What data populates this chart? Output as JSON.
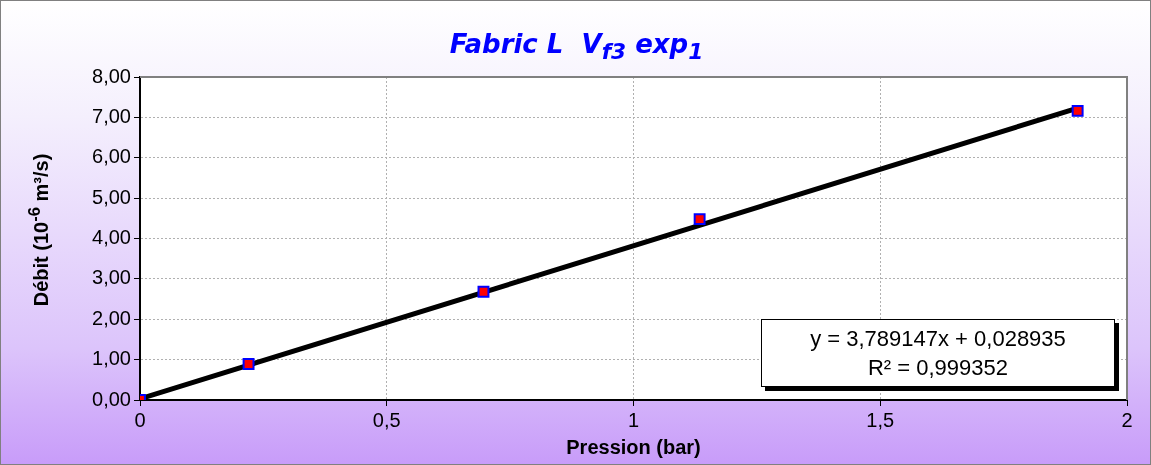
{
  "chart_data": {
    "type": "scatter",
    "title": "Fabric L  V$_{f3}$ exp$_{1}$",
    "xlabel": "Pression (bar)",
    "ylabel": "Débit (10$^{-6}$ m³/s)",
    "series": [
      {
        "color": "#ff0000",
        "marker": "square",
        "x": [
          0,
          0.22,
          0.696,
          1.134,
          1.9
        ],
        "values": [
          0,
          0.89,
          2.68,
          4.48,
          7.16
        ]
      },
      {
        "type": "line",
        "color": "#000000",
        "marker": "none",
        "x": [
          0,
          1.9
        ],
        "values": [
          0.03,
          7.23
        ]
      }
    ],
    "xlim": [
      0,
      2
    ],
    "xticks": [
      0,
      {
        "value": 0.5,
        "label": "0,5"
      },
      1,
      {
        "value": 1.5,
        "label": "1,5"
      },
      2
    ],
    "ylim": [
      0,
      8
    ],
    "yticks": [
      {
        "value": 0,
        "label": "0,00"
      },
      {
        "value": 1,
        "label": "1,00"
      },
      {
        "value": 2,
        "label": "2,00"
      },
      {
        "value": 3,
        "label": "3,00"
      },
      {
        "value": 4,
        "label": "4,00"
      },
      {
        "value": 5,
        "label": "5,00"
      },
      {
        "value": 6,
        "label": "6,00"
      },
      {
        "value": 7,
        "label": "7,00"
      },
      {
        "value": 8,
        "label": "8,00"
      }
    ],
    "annotations": [
      "y = 3,789147x + 0,028935",
      "R² = 0,999352"
    ],
    "grid": true,
    "legend": false
  }
}
